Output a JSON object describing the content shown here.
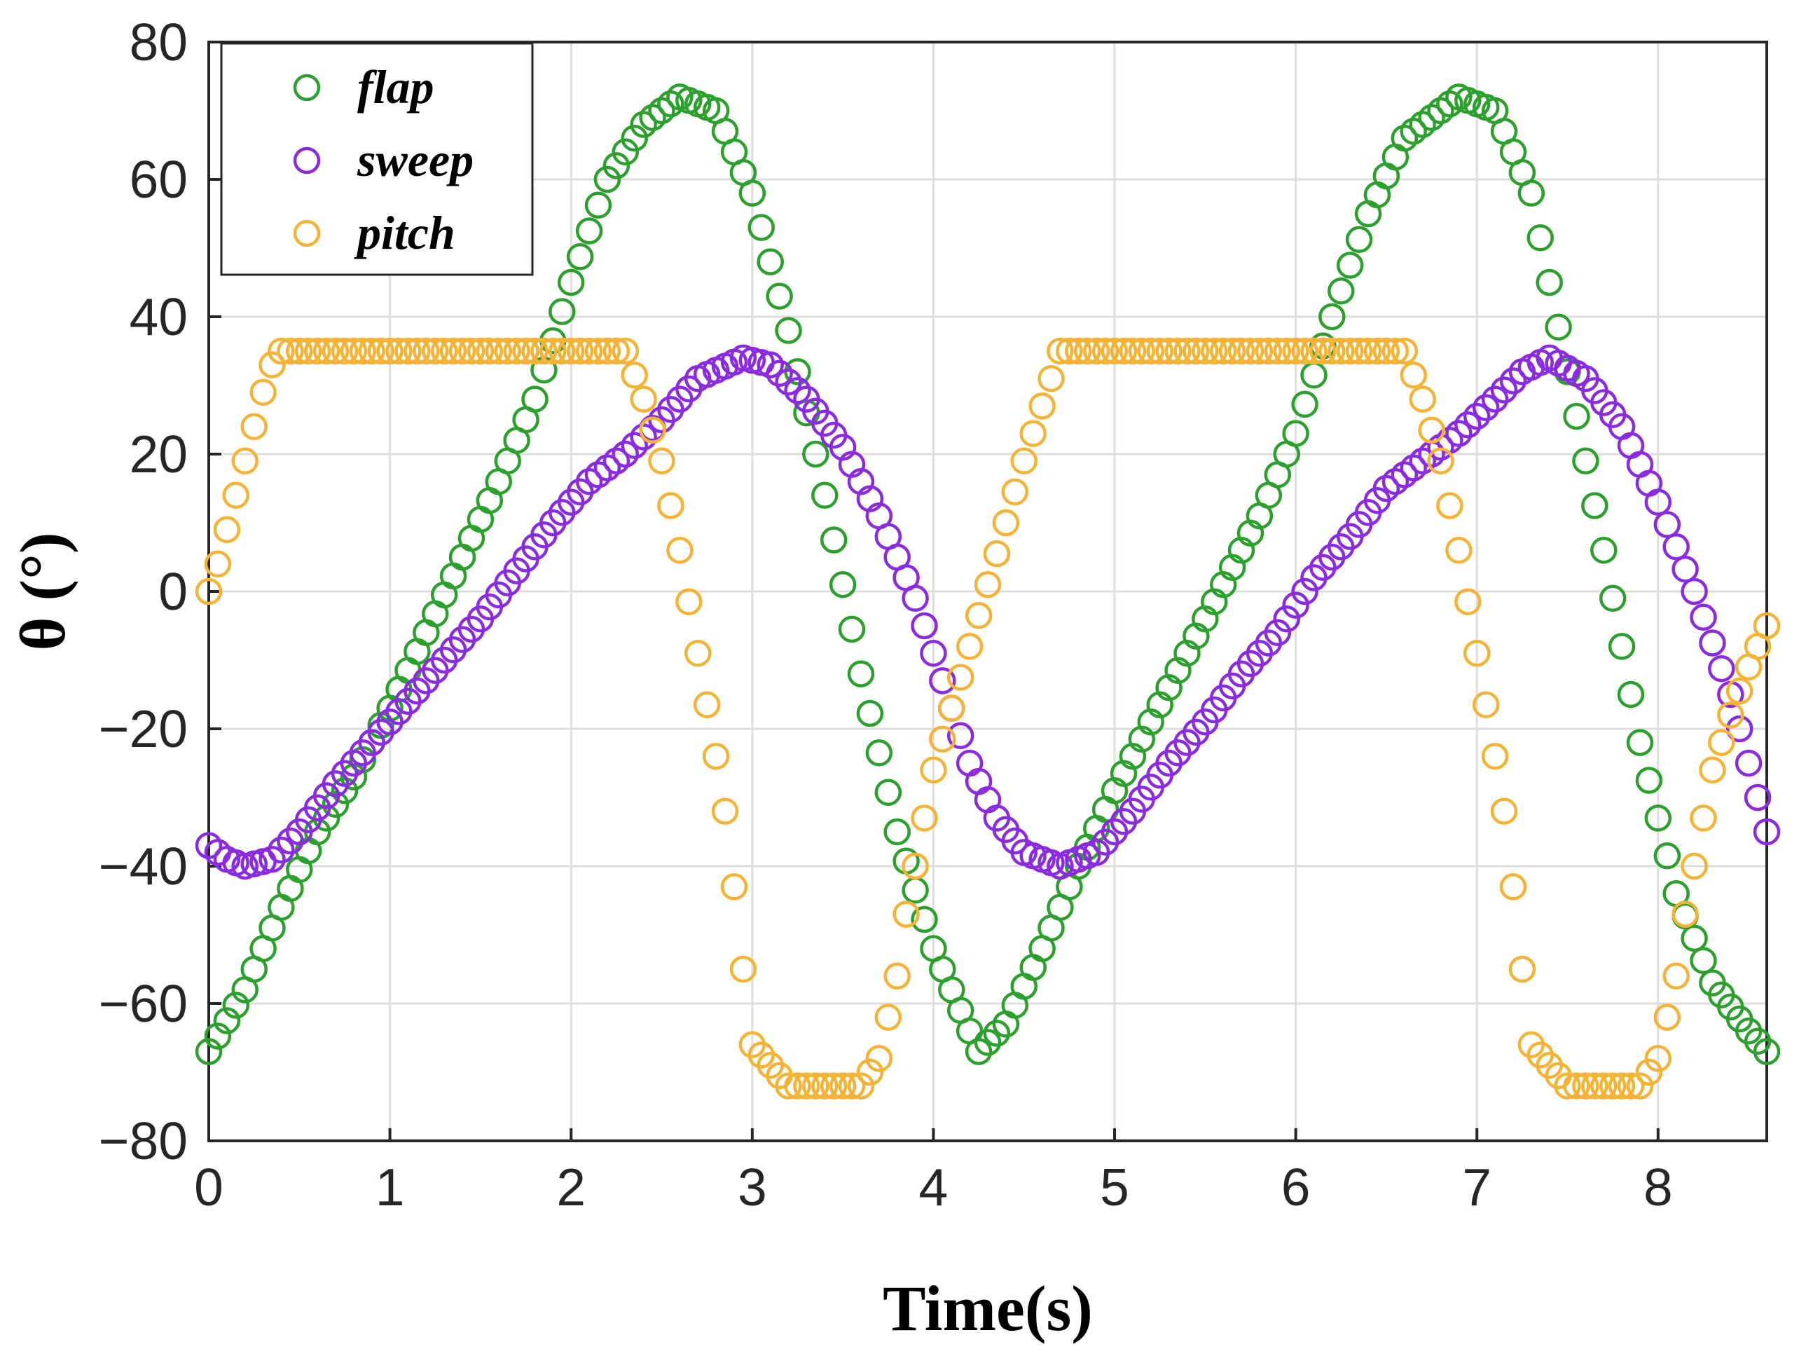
{
  "chart_data": {
    "type": "scatter",
    "title": "",
    "xlabel": "Time(s)",
    "ylabel": "θ (°)",
    "xlim": [
      0,
      8.6
    ],
    "ylim": [
      -80,
      80
    ],
    "xticks": [
      0,
      1,
      2,
      3,
      4,
      5,
      6,
      7,
      8
    ],
    "yticks": [
      80,
      60,
      40,
      20,
      0,
      -20,
      -40,
      -60,
      -80
    ],
    "xtick_labels": [
      "0",
      "1",
      "2",
      "3",
      "4",
      "5",
      "6",
      "7",
      "8"
    ],
    "ytick_labels": [
      "80",
      "60",
      "40",
      "20",
      "0",
      "−20",
      "−40",
      "−60",
      "−80"
    ],
    "grid": true,
    "legend_position": "top-left",
    "marker": "open-circle",
    "sample_step": 0.05,
    "series": [
      {
        "name": "flap",
        "color": "#2ca02c",
        "x": [
          0,
          0.2,
          0.4,
          0.6,
          0.8,
          1.0,
          1.2,
          1.4,
          1.6,
          1.8,
          2.0,
          2.2,
          2.4,
          2.6,
          2.8,
          3.0,
          3.2,
          3.4,
          3.6,
          3.8,
          4.0,
          4.25,
          4.4,
          4.6,
          4.8,
          5.0,
          5.2,
          5.4,
          5.6,
          5.8,
          6.0,
          6.2,
          6.4,
          6.6,
          6.9,
          7.1,
          7.3,
          7.5,
          7.7,
          7.9,
          8.1,
          8.3,
          8.5,
          8.6
        ],
        "y": [
          -67,
          -58,
          -46,
          -35,
          -27,
          -17,
          -6,
          5,
          16,
          28,
          45,
          60,
          68,
          72,
          70,
          58,
          38,
          14,
          -12,
          -35,
          -52,
          -67,
          -63,
          -52,
          -40,
          -29,
          -19,
          -9,
          1,
          11,
          23,
          40,
          55,
          66,
          72,
          70,
          58,
          32,
          6,
          -22,
          -44,
          -57,
          -64,
          -67
        ]
      },
      {
        "name": "sweep",
        "color": "#8a2be2",
        "x": [
          0,
          0.1,
          0.2,
          0.35,
          0.5,
          0.7,
          0.9,
          1.1,
          1.3,
          1.5,
          1.7,
          1.9,
          2.1,
          2.3,
          2.5,
          2.7,
          2.95,
          3.1,
          3.3,
          3.5,
          3.7,
          3.9,
          4.05,
          4.2,
          4.35,
          4.5,
          4.7,
          4.9,
          5.1,
          5.3,
          5.5,
          5.7,
          5.9,
          6.1,
          6.3,
          6.5,
          6.7,
          6.9,
          7.1,
          7.25,
          7.4,
          7.6,
          7.8,
          8.0,
          8.2,
          8.4,
          8.6
        ],
        "y": [
          -37,
          -39,
          -40,
          -39,
          -35,
          -28,
          -22,
          -16,
          -10,
          -4,
          3,
          10,
          16,
          20,
          25,
          31,
          34,
          33,
          28,
          21,
          11,
          -1,
          -13,
          -25,
          -33,
          -38,
          -40,
          -38,
          -32,
          -25,
          -19,
          -12,
          -6,
          2,
          8,
          15,
          19,
          23,
          28,
          32,
          34,
          31,
          24,
          13,
          0,
          -15,
          -35
        ]
      },
      {
        "name": "pitch",
        "color": "#f5b335",
        "x": [
          0,
          0.05,
          0.1,
          0.15,
          0.2,
          0.25,
          0.3,
          0.35,
          0.4,
          0.6,
          0.8,
          1.0,
          1.2,
          1.4,
          1.6,
          1.8,
          2.0,
          2.2,
          2.3,
          2.4,
          2.5,
          2.6,
          2.7,
          2.8,
          2.85,
          2.9,
          2.95,
          3.0,
          3.2,
          3.4,
          3.6,
          3.7,
          3.75,
          3.8,
          3.85,
          3.9,
          3.95,
          4.0,
          4.1,
          4.2,
          4.3,
          4.4,
          4.5,
          4.6,
          4.7,
          4.9,
          5.1,
          5.3,
          5.5,
          5.7,
          5.9,
          6.1,
          6.3,
          6.5,
          6.6,
          6.7,
          6.8,
          6.9,
          7.0,
          7.1,
          7.15,
          7.2,
          7.25,
          7.3,
          7.5,
          7.7,
          7.9,
          8.0,
          8.05,
          8.1,
          8.15,
          8.2,
          8.25,
          8.3,
          8.4,
          8.5,
          8.6
        ],
        "y": [
          0,
          4,
          9,
          14,
          19,
          24,
          29,
          33,
          35,
          35,
          35,
          35,
          35,
          35,
          35,
          35,
          35,
          35,
          35,
          28,
          19,
          6,
          -9,
          -24,
          -32,
          -43,
          -55,
          -66,
          -72,
          -72,
          -72,
          -68,
          -62,
          -56,
          -47,
          -40,
          -33,
          -26,
          -17,
          -8,
          1,
          10,
          19,
          27,
          35,
          35,
          35,
          35,
          35,
          35,
          35,
          35,
          35,
          35,
          35,
          28,
          19,
          6,
          -9,
          -24,
          -32,
          -43,
          -55,
          -66,
          -72,
          -72,
          -72,
          -68,
          -62,
          -56,
          -47,
          -40,
          -33,
          -26,
          -18,
          -11,
          -5
        ]
      }
    ]
  }
}
